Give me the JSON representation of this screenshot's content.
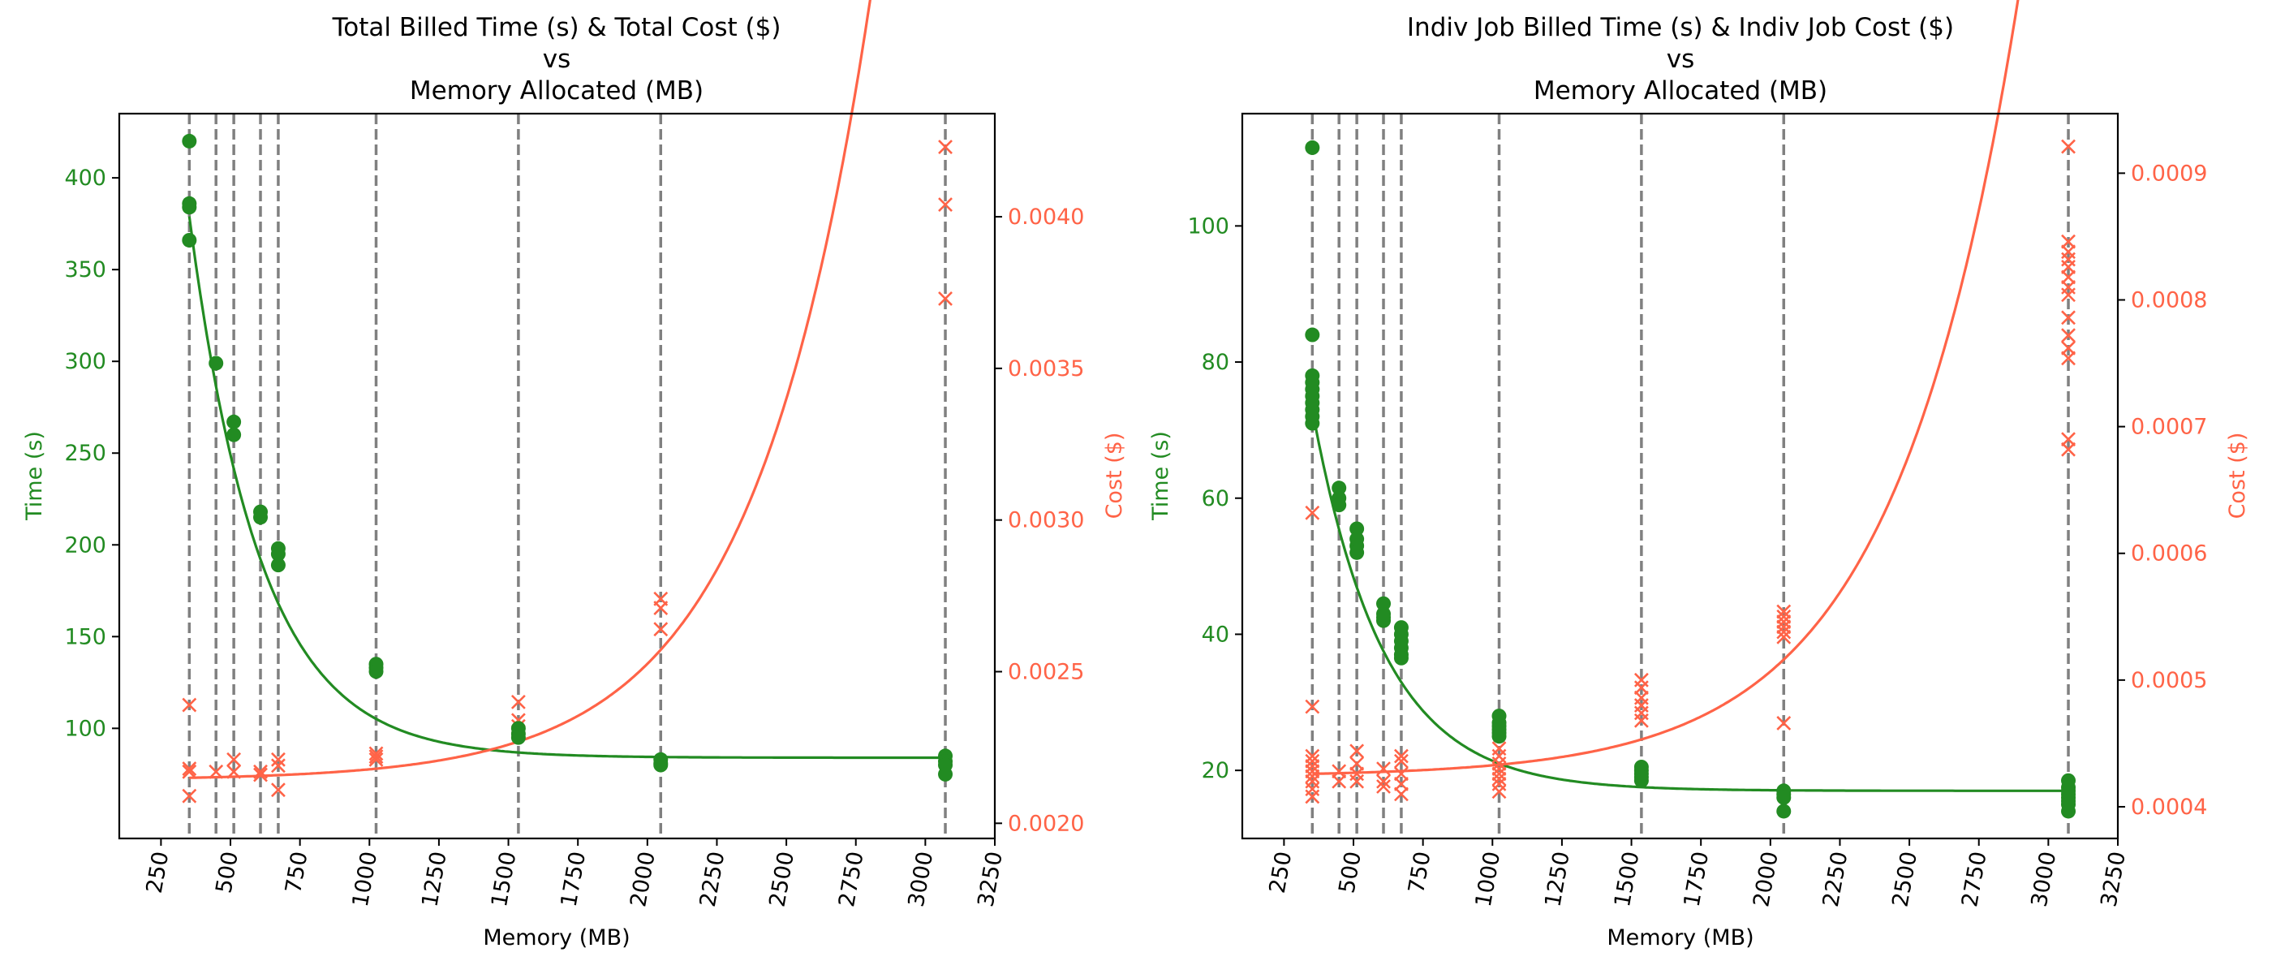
{
  "figure": {
    "colors": {
      "time": "#228b22",
      "cost": "#ff6347",
      "vline": "#808080",
      "axis": "#000000"
    }
  },
  "chart_data": [
    {
      "type": "scatter",
      "title": [
        "Total Billed Time (s) & Total Cost ($)",
        "vs",
        "Memory Allocated (MB)"
      ],
      "xlabel": "Memory (MB)",
      "ylabel_left": "Time (s)",
      "ylabel_right": "Cost ($)",
      "xlim": [
        100,
        3250
      ],
      "ylim_left": [
        40,
        435
      ],
      "ylim_right": [
        0.00195,
        0.00434
      ],
      "xticks": [
        "250",
        "500",
        "750",
        "1000",
        "1250",
        "1500",
        "1750",
        "2000",
        "2250",
        "2500",
        "2750",
        "3000",
        "3250"
      ],
      "yticks_left": [
        "100",
        "150",
        "200",
        "250",
        "300",
        "350",
        "400"
      ],
      "yticks_right": [
        "0.0020",
        "0.0025",
        "0.0030",
        "0.0035",
        "0.0040"
      ],
      "memory_levels": [
        352,
        448,
        512,
        608,
        672,
        1024,
        1536,
        2048,
        3072
      ],
      "time_points": [
        [
          352,
          420
        ],
        [
          352,
          386
        ],
        [
          352,
          384
        ],
        [
          352,
          366
        ],
        [
          448,
          299
        ],
        [
          512,
          267
        ],
        [
          512,
          260
        ],
        [
          608,
          218
        ],
        [
          608,
          215
        ],
        [
          672,
          198
        ],
        [
          672,
          195
        ],
        [
          672,
          189
        ],
        [
          1024,
          135
        ],
        [
          1024,
          133
        ],
        [
          1024,
          131
        ],
        [
          1536,
          100
        ],
        [
          1536,
          97
        ],
        [
          1536,
          95
        ],
        [
          2048,
          83
        ],
        [
          2048,
          81
        ],
        [
          2048,
          80
        ],
        [
          3072,
          85
        ],
        [
          3072,
          82
        ],
        [
          3072,
          80
        ],
        [
          3072,
          75
        ]
      ],
      "cost_points": [
        [
          352,
          0.00239
        ],
        [
          352,
          0.00218
        ],
        [
          352,
          0.00217
        ],
        [
          352,
          0.00209
        ],
        [
          448,
          0.00217
        ],
        [
          512,
          0.00221
        ],
        [
          512,
          0.00217
        ],
        [
          608,
          0.00217
        ],
        [
          608,
          0.00216
        ],
        [
          672,
          0.00221
        ],
        [
          672,
          0.00219
        ],
        [
          672,
          0.00211
        ],
        [
          1024,
          0.00223
        ],
        [
          1024,
          0.00222
        ],
        [
          1024,
          0.00221
        ],
        [
          1536,
          0.0024
        ],
        [
          1536,
          0.00234
        ],
        [
          1536,
          0.00232
        ],
        [
          2048,
          0.00274
        ],
        [
          2048,
          0.00271
        ],
        [
          2048,
          0.00264
        ],
        [
          3072,
          0.00423
        ],
        [
          3072,
          0.00404
        ],
        [
          3072,
          0.00373
        ]
      ],
      "time_fit": {
        "asymptote": 84,
        "amplitude": 295,
        "decay_mb": 255,
        "x_start": 352
      },
      "cost_fit": {
        "base": 0.00215,
        "scale": 7.65e-06,
        "growth_mb": 421,
        "x_start": 352,
        "x_end": 3072
      }
    },
    {
      "type": "scatter",
      "title": [
        "Indiv Job Billed Time (s) & Indiv Job Cost ($)",
        "vs",
        "Memory Allocated (MB)"
      ],
      "xlabel": "Memory (MB)",
      "ylabel_left": "Time (s)",
      "ylabel_right": "Cost ($)",
      "xlim": [
        100,
        3250
      ],
      "ylim_left": [
        10,
        116.5
      ],
      "ylim_right": [
        0.000375,
        0.000947
      ],
      "xticks": [
        "250",
        "500",
        "750",
        "1000",
        "1250",
        "1500",
        "1750",
        "2000",
        "2250",
        "2500",
        "2750",
        "3000",
        "3250"
      ],
      "yticks_left": [
        "20",
        "40",
        "60",
        "80",
        "100"
      ],
      "yticks_right": [
        "0.0004",
        "0.0005",
        "0.0006",
        "0.0007",
        "0.0008",
        "0.0009"
      ],
      "memory_levels": [
        352,
        448,
        512,
        608,
        672,
        1024,
        1536,
        2048,
        3072
      ],
      "time_points": [
        [
          352,
          111.5
        ],
        [
          352,
          84
        ],
        [
          352,
          78
        ],
        [
          352,
          77
        ],
        [
          352,
          76
        ],
        [
          352,
          75
        ],
        [
          352,
          74
        ],
        [
          352,
          73
        ],
        [
          352,
          72
        ],
        [
          352,
          71
        ],
        [
          448,
          61.5
        ],
        [
          448,
          60
        ],
        [
          448,
          59
        ],
        [
          512,
          55.5
        ],
        [
          512,
          54
        ],
        [
          512,
          53
        ],
        [
          512,
          52
        ],
        [
          608,
          44.5
        ],
        [
          608,
          43
        ],
        [
          608,
          42.5
        ],
        [
          608,
          42
        ],
        [
          672,
          41
        ],
        [
          672,
          40
        ],
        [
          672,
          39
        ],
        [
          672,
          38
        ],
        [
          672,
          37
        ],
        [
          672,
          36.5
        ],
        [
          1024,
          28
        ],
        [
          1024,
          27
        ],
        [
          1024,
          26.5
        ],
        [
          1024,
          26
        ],
        [
          1024,
          25.5
        ],
        [
          1024,
          25
        ],
        [
          1536,
          20.5
        ],
        [
          1536,
          20
        ],
        [
          1536,
          19.5
        ],
        [
          1536,
          19
        ],
        [
          1536,
          18.5
        ],
        [
          2048,
          17
        ],
        [
          2048,
          16.5
        ],
        [
          2048,
          16
        ],
        [
          2048,
          14
        ],
        [
          3072,
          18.5
        ],
        [
          3072,
          17.5
        ],
        [
          3072,
          17
        ],
        [
          3072,
          16.5
        ],
        [
          3072,
          16
        ],
        [
          3072,
          15.5
        ],
        [
          3072,
          15
        ],
        [
          3072,
          14
        ]
      ],
      "cost_points": [
        [
          352,
          0.000632
        ],
        [
          352,
          0.000479
        ],
        [
          352,
          0.00044
        ],
        [
          352,
          0.000436
        ],
        [
          352,
          0.000432
        ],
        [
          352,
          0.000428
        ],
        [
          352,
          0.000424
        ],
        [
          352,
          0.00042
        ],
        [
          352,
          0.000414
        ],
        [
          352,
          0.000408
        ],
        [
          448,
          0.000428
        ],
        [
          448,
          0.00042
        ],
        [
          512,
          0.000444
        ],
        [
          512,
          0.000434
        ],
        [
          512,
          0.000426
        ],
        [
          512,
          0.00042
        ],
        [
          608,
          0.00043
        ],
        [
          608,
          0.00042
        ],
        [
          608,
          0.000416
        ],
        [
          672,
          0.00044
        ],
        [
          672,
          0.000436
        ],
        [
          672,
          0.000426
        ],
        [
          672,
          0.000418
        ],
        [
          672,
          0.00041
        ],
        [
          1024,
          0.000446
        ],
        [
          1024,
          0.00044
        ],
        [
          1024,
          0.000434
        ],
        [
          1024,
          0.00043
        ],
        [
          1024,
          0.000426
        ],
        [
          1024,
          0.000422
        ],
        [
          1024,
          0.000418
        ],
        [
          1024,
          0.000412
        ],
        [
          1536,
          0.0005
        ],
        [
          1536,
          0.000494
        ],
        [
          1536,
          0.000486
        ],
        [
          1536,
          0.00048
        ],
        [
          1536,
          0.000474
        ],
        [
          1536,
          0.000468
        ],
        [
          2048,
          0.000554
        ],
        [
          2048,
          0.00055
        ],
        [
          2048,
          0.000546
        ],
        [
          2048,
          0.000542
        ],
        [
          2048,
          0.000538
        ],
        [
          2048,
          0.000534
        ],
        [
          2048,
          0.000466
        ],
        [
          3072,
          0.000921
        ],
        [
          3072,
          0.000846
        ],
        [
          3072,
          0.000838
        ],
        [
          3072,
          0.000832
        ],
        [
          3072,
          0.000826
        ],
        [
          3072,
          0.000818
        ],
        [
          3072,
          0.00081
        ],
        [
          3072,
          0.000804
        ],
        [
          3072,
          0.000786
        ],
        [
          3072,
          0.000772
        ],
        [
          3072,
          0.000762
        ],
        [
          3072,
          0.000754
        ],
        [
          3072,
          0.00069
        ],
        [
          3072,
          0.000682
        ]
      ],
      "time_fit": {
        "asymptote": 17,
        "amplitude": 56,
        "decay_mb": 255,
        "x_start": 352
      },
      "cost_fit": {
        "base": 0.000426,
        "scale": 2.04e-06,
        "growth_mb": 445,
        "x_start": 352,
        "x_end": 3072
      }
    }
  ]
}
